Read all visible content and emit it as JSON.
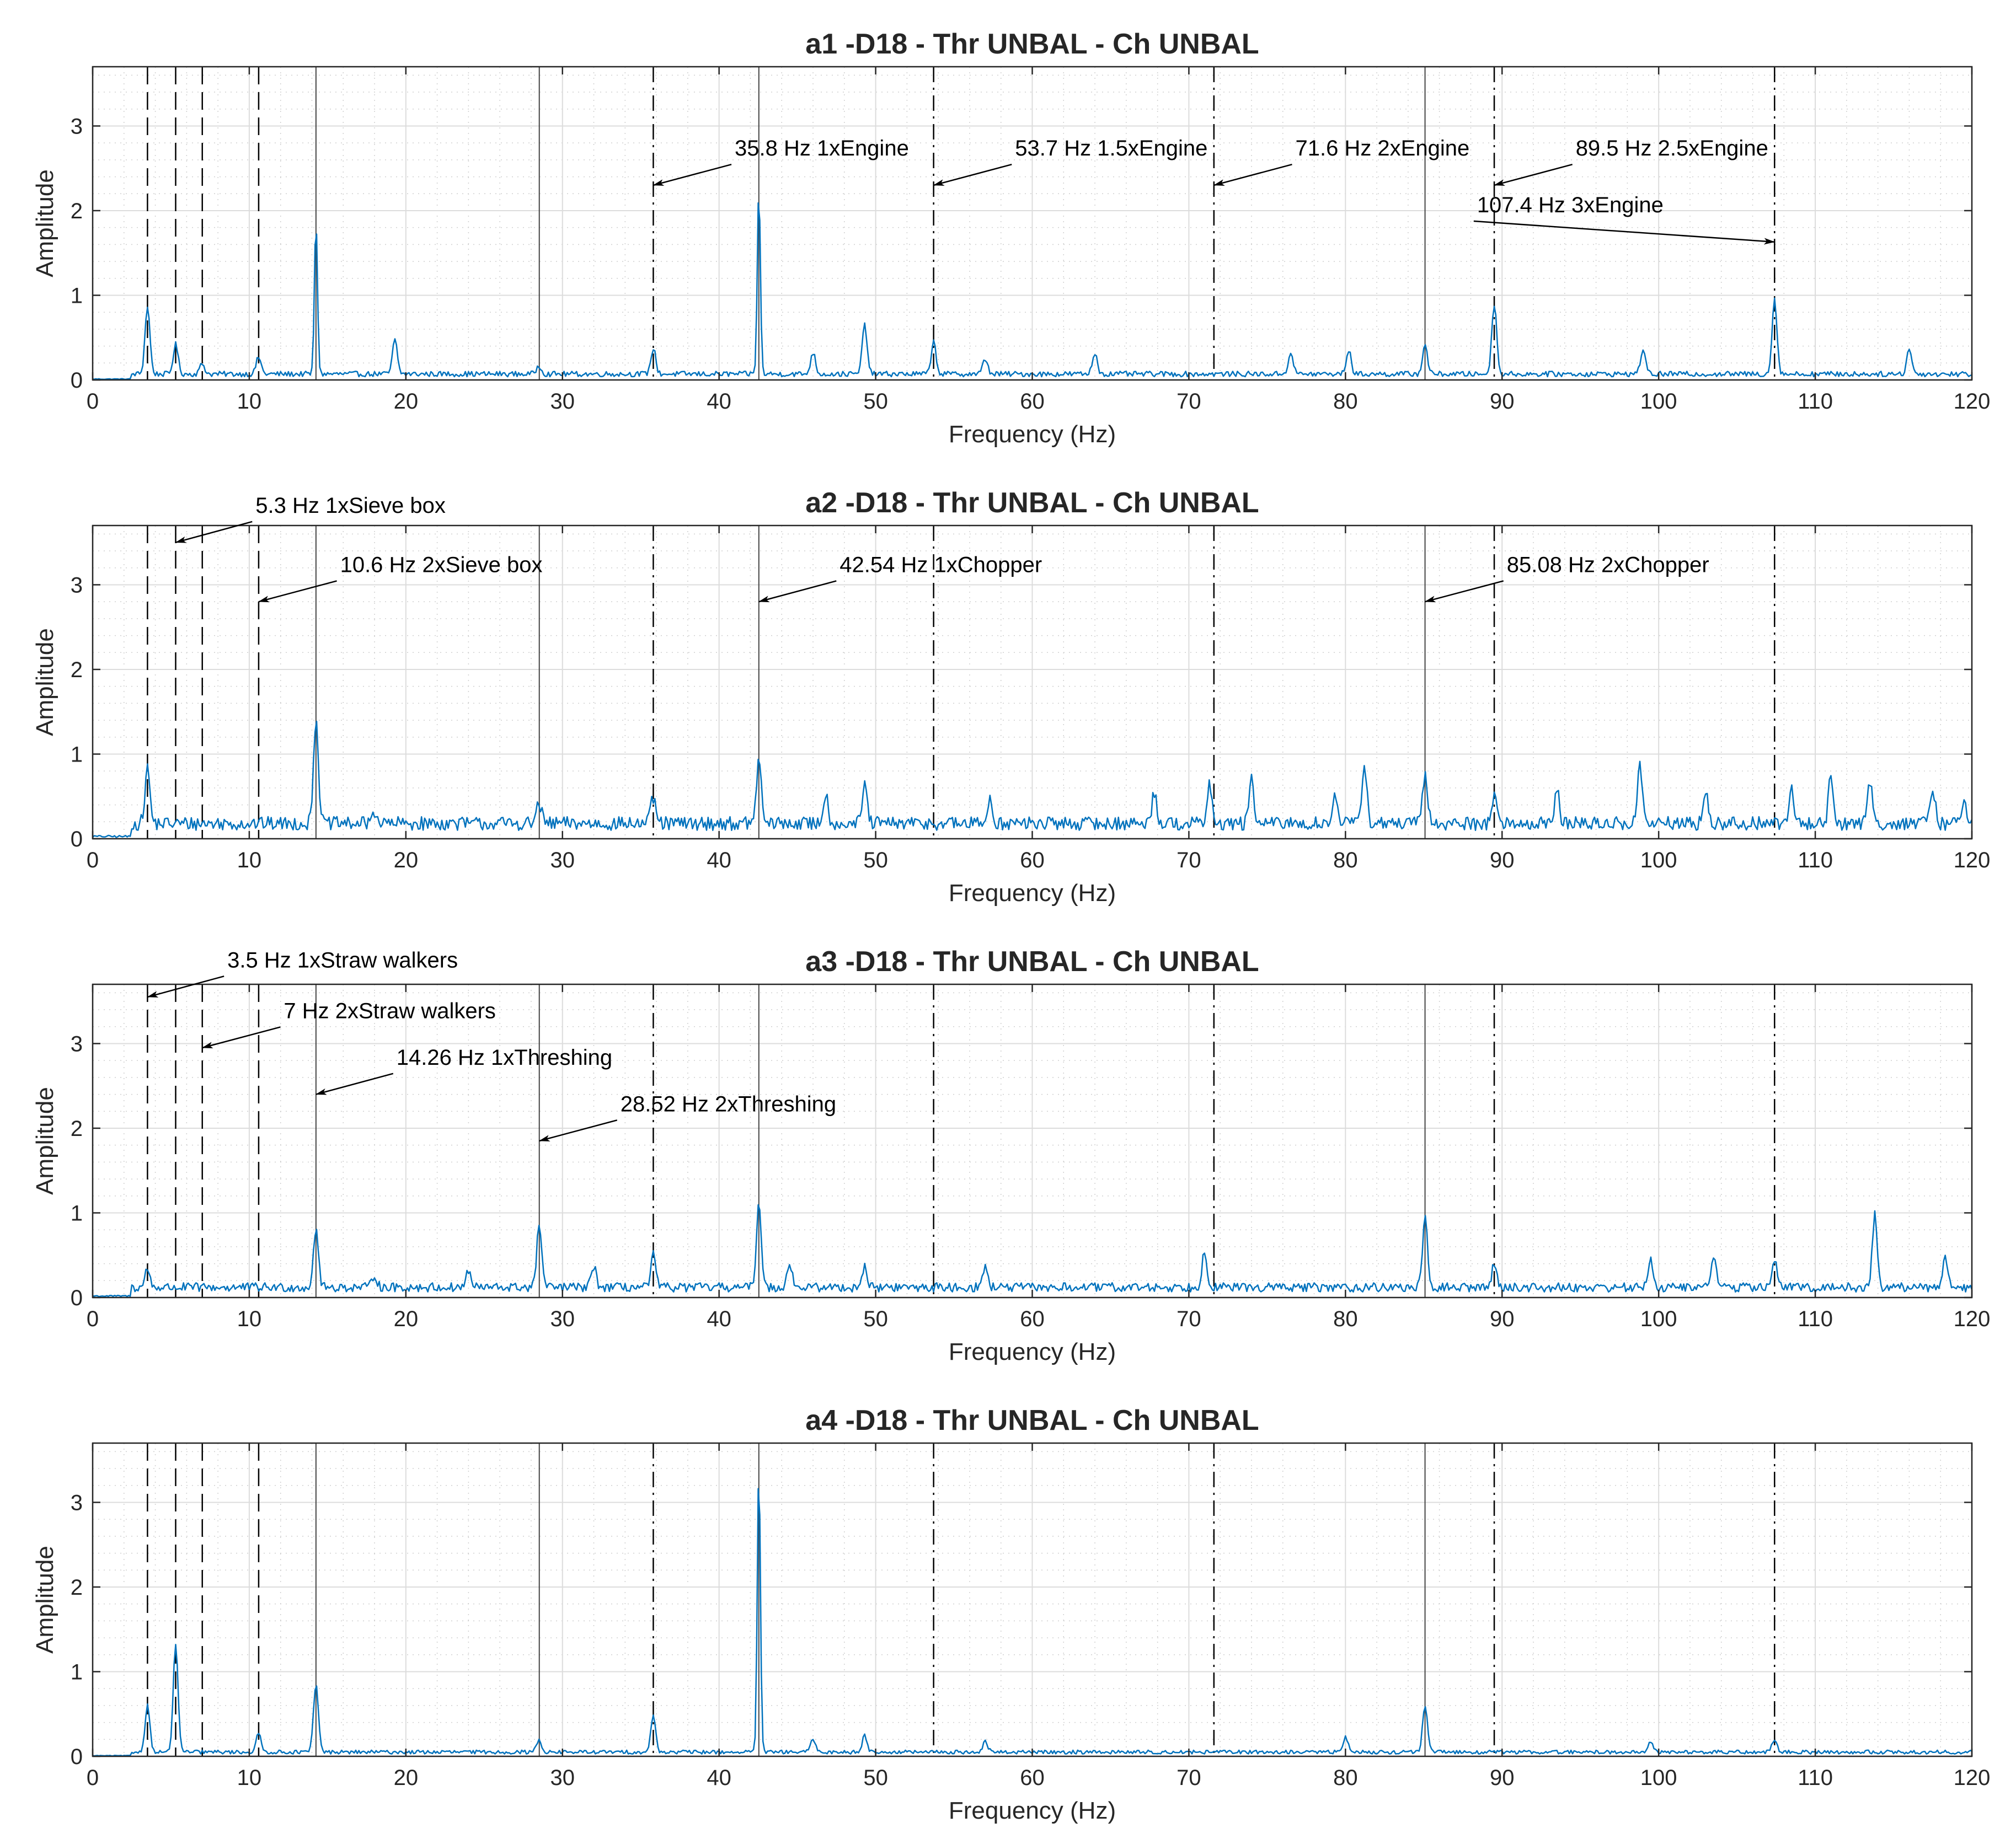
{
  "chart_data": [
    {
      "type": "line",
      "title": "a1 -D18 - Thr UNBAL - Ch UNBAL",
      "xlabel": "Frequency (Hz)",
      "ylabel": "Amplitude",
      "xlim": [
        0,
        120
      ],
      "ylim": [
        0,
        3.7
      ],
      "xticks": [
        0,
        10,
        20,
        30,
        40,
        50,
        60,
        70,
        80,
        90,
        100,
        110,
        120
      ],
      "yticks": [
        0,
        1,
        2,
        3
      ],
      "grid": true,
      "series_color": "#0072BD",
      "base_level": 0.07,
      "peaks": [
        [
          3.5,
          0.8
        ],
        [
          5.3,
          0.35
        ],
        [
          7,
          0.12
        ],
        [
          10.6,
          0.2
        ],
        [
          14.26,
          1.8
        ],
        [
          19.3,
          0.4
        ],
        [
          28.5,
          0.1
        ],
        [
          35.8,
          0.3
        ],
        [
          42.54,
          2.17
        ],
        [
          46,
          0.25
        ],
        [
          49.3,
          0.58
        ],
        [
          53.7,
          0.38
        ],
        [
          57,
          0.18
        ],
        [
          64,
          0.25
        ],
        [
          76.5,
          0.25
        ],
        [
          80.2,
          0.28
        ],
        [
          85.08,
          0.35
        ],
        [
          89.5,
          0.83
        ],
        [
          99,
          0.3
        ],
        [
          107.4,
          0.88
        ],
        [
          116,
          0.3
        ]
      ],
      "annotations": [
        {
          "text": "35.8 Hz 1xEngine",
          "x": 35.8,
          "y": 2.3,
          "text_x": 41,
          "text_y": 2.65
        },
        {
          "text": "53.7 Hz 1.5xEngine",
          "x": 53.7,
          "y": 2.3,
          "text_x": 58.9,
          "text_y": 2.65
        },
        {
          "text": "71.6 Hz 2xEngine",
          "x": 71.6,
          "y": 2.3,
          "text_x": 76.8,
          "text_y": 2.65
        },
        {
          "text": "89.5 Hz 2.5xEngine",
          "x": 89.5,
          "y": 2.3,
          "text_x": 94.7,
          "text_y": 2.65
        },
        {
          "text": "107.4 Hz 3xEngine",
          "x": 107.4,
          "y": 1.63,
          "text_x": 88.4,
          "text_y": 1.98
        }
      ]
    },
    {
      "type": "line",
      "title": "a2 -D18 - Thr UNBAL - Ch UNBAL",
      "xlabel": "Frequency (Hz)",
      "ylabel": "Amplitude",
      "xlim": [
        0,
        120
      ],
      "ylim": [
        0,
        3.7
      ],
      "xticks": [
        0,
        10,
        20,
        30,
        40,
        50,
        60,
        70,
        80,
        90,
        100,
        110,
        120
      ],
      "yticks": [
        0,
        1,
        2,
        3
      ],
      "grid": true,
      "series_color": "#0072BD",
      "base_level": 0.18,
      "peaks": [
        [
          3.5,
          0.65
        ],
        [
          14.26,
          1.25
        ],
        [
          18,
          0.15
        ],
        [
          28.5,
          0.25
        ],
        [
          35.8,
          0.3
        ],
        [
          42.54,
          0.75
        ],
        [
          46.8,
          0.35
        ],
        [
          49.3,
          0.45
        ],
        [
          57.3,
          0.3
        ],
        [
          67.8,
          0.38
        ],
        [
          71.3,
          0.45
        ],
        [
          74,
          0.5
        ],
        [
          79.3,
          0.35
        ],
        [
          81.2,
          0.72
        ],
        [
          85.08,
          0.58
        ],
        [
          89.5,
          0.35
        ],
        [
          93.5,
          0.4
        ],
        [
          98.8,
          0.68
        ],
        [
          103,
          0.35
        ],
        [
          108.5,
          0.4
        ],
        [
          111,
          0.55
        ],
        [
          113.5,
          0.5
        ],
        [
          117.5,
          0.4
        ],
        [
          119.5,
          0.32
        ]
      ],
      "annotations": [
        {
          "text": "5.3 Hz 1xSieve box",
          "x": 5.3,
          "y": 3.5,
          "text_x": 10.4,
          "text_y": 3.85
        },
        {
          "text": "10.6 Hz 2xSieve box",
          "x": 10.6,
          "y": 2.8,
          "text_x": 15.8,
          "text_y": 3.15
        },
        {
          "text": "42.54 Hz 1xChopper",
          "x": 42.54,
          "y": 2.8,
          "text_x": 47.7,
          "text_y": 3.15
        },
        {
          "text": "85.08 Hz 2xChopper",
          "x": 85.08,
          "y": 2.8,
          "text_x": 90.3,
          "text_y": 3.15
        }
      ]
    },
    {
      "type": "line",
      "title": "a3 -D18 - Thr UNBAL - Ch UNBAL",
      "xlabel": "Frequency (Hz)",
      "ylabel": "Amplitude",
      "xlim": [
        0,
        120
      ],
      "ylim": [
        0,
        3.7
      ],
      "xticks": [
        0,
        10,
        20,
        30,
        40,
        50,
        60,
        70,
        80,
        90,
        100,
        110,
        120
      ],
      "yticks": [
        0,
        1,
        2,
        3
      ],
      "grid": true,
      "series_color": "#0072BD",
      "base_level": 0.12,
      "peaks": [
        [
          3.5,
          0.22
        ],
        [
          14.26,
          0.7
        ],
        [
          18,
          0.15
        ],
        [
          24,
          0.2
        ],
        [
          28.52,
          0.75
        ],
        [
          32,
          0.25
        ],
        [
          35.8,
          0.38
        ],
        [
          42.54,
          1.0
        ],
        [
          44.5,
          0.3
        ],
        [
          49.3,
          0.25
        ],
        [
          57,
          0.25
        ],
        [
          71,
          0.45
        ],
        [
          85.08,
          0.8
        ],
        [
          89.5,
          0.28
        ],
        [
          99.5,
          0.32
        ],
        [
          103.5,
          0.4
        ],
        [
          107.4,
          0.35
        ],
        [
          113.8,
          0.85
        ],
        [
          118.3,
          0.38
        ]
      ],
      "annotations": [
        {
          "text": "3.5 Hz 1xStraw walkers",
          "x": 3.5,
          "y": 3.55,
          "text_x": 8.6,
          "text_y": 3.9
        },
        {
          "text": "7 Hz 2xStraw walkers",
          "x": 7.0,
          "y": 2.95,
          "text_x": 12.2,
          "text_y": 3.3
        },
        {
          "text": "14.26 Hz 1xThreshing",
          "x": 14.26,
          "y": 2.4,
          "text_x": 19.4,
          "text_y": 2.75
        },
        {
          "text": "28.52 Hz 2xThreshing",
          "x": 28.52,
          "y": 1.85,
          "text_x": 33.7,
          "text_y": 2.2
        }
      ]
    },
    {
      "type": "line",
      "title": "a4 -D18 - Thr UNBAL - Ch UNBAL",
      "xlabel": "Frequency (Hz)",
      "ylabel": "Amplitude",
      "xlim": [
        0,
        120
      ],
      "ylim": [
        0,
        3.7
      ],
      "xticks": [
        0,
        10,
        20,
        30,
        40,
        50,
        60,
        70,
        80,
        90,
        100,
        110,
        120
      ],
      "yticks": [
        0,
        1,
        2,
        3
      ],
      "grid": true,
      "series_color": "#0072BD",
      "base_level": 0.05,
      "peaks": [
        [
          3.5,
          0.55
        ],
        [
          5.3,
          1.25
        ],
        [
          10.6,
          0.22
        ],
        [
          14.26,
          0.8
        ],
        [
          28.5,
          0.15
        ],
        [
          35.8,
          0.42
        ],
        [
          42.54,
          3.38
        ],
        [
          46,
          0.15
        ],
        [
          49.3,
          0.2
        ],
        [
          57,
          0.12
        ],
        [
          80,
          0.18
        ],
        [
          85.08,
          0.55
        ],
        [
          99.5,
          0.12
        ],
        [
          107.4,
          0.15
        ]
      ],
      "annotations": []
    }
  ],
  "reference_lines": [
    {
      "x": 3.5,
      "style": "dashed"
    },
    {
      "x": 5.3,
      "style": "dashed"
    },
    {
      "x": 7.0,
      "style": "dashed"
    },
    {
      "x": 10.6,
      "style": "dashed"
    },
    {
      "x": 14.26,
      "style": "solid"
    },
    {
      "x": 28.52,
      "style": "solid"
    },
    {
      "x": 35.8,
      "style": "dashdot"
    },
    {
      "x": 42.54,
      "style": "solid"
    },
    {
      "x": 53.7,
      "style": "dashdot"
    },
    {
      "x": 71.6,
      "style": "dashdot"
    },
    {
      "x": 85.08,
      "style": "solid"
    },
    {
      "x": 89.5,
      "style": "dashdot"
    },
    {
      "x": 107.4,
      "style": "dashdot"
    }
  ]
}
